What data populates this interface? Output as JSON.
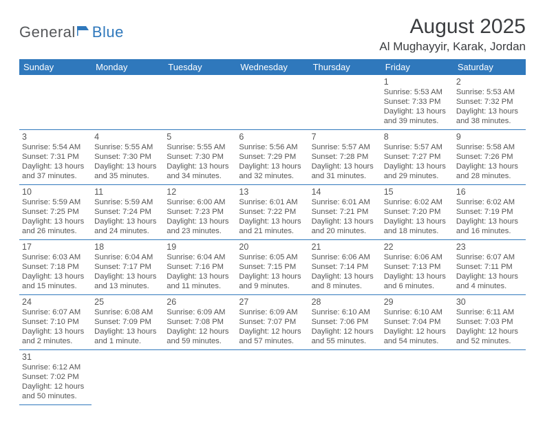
{
  "logo": {
    "part1": "General",
    "part2": "Blue",
    "text_color1": "#55575a",
    "text_color2": "#2f78bc",
    "icon_color": "#2f78bc"
  },
  "title": {
    "month": "August 2025",
    "location": "Al Mughayyir, Karak, Jordan"
  },
  "colors": {
    "header_bg": "#2f78bc",
    "header_fg": "#ffffff",
    "cell_border": "#2f78bc",
    "text": "#555555"
  },
  "weekdays": [
    "Sunday",
    "Monday",
    "Tuesday",
    "Wednesday",
    "Thursday",
    "Friday",
    "Saturday"
  ],
  "weeks": [
    [
      null,
      null,
      null,
      null,
      null,
      {
        "n": "1",
        "sr": "Sunrise: 5:53 AM",
        "ss": "Sunset: 7:33 PM",
        "d1": "Daylight: 13 hours",
        "d2": "and 39 minutes."
      },
      {
        "n": "2",
        "sr": "Sunrise: 5:53 AM",
        "ss": "Sunset: 7:32 PM",
        "d1": "Daylight: 13 hours",
        "d2": "and 38 minutes."
      }
    ],
    [
      {
        "n": "3",
        "sr": "Sunrise: 5:54 AM",
        "ss": "Sunset: 7:31 PM",
        "d1": "Daylight: 13 hours",
        "d2": "and 37 minutes."
      },
      {
        "n": "4",
        "sr": "Sunrise: 5:55 AM",
        "ss": "Sunset: 7:30 PM",
        "d1": "Daylight: 13 hours",
        "d2": "and 35 minutes."
      },
      {
        "n": "5",
        "sr": "Sunrise: 5:55 AM",
        "ss": "Sunset: 7:30 PM",
        "d1": "Daylight: 13 hours",
        "d2": "and 34 minutes."
      },
      {
        "n": "6",
        "sr": "Sunrise: 5:56 AM",
        "ss": "Sunset: 7:29 PM",
        "d1": "Daylight: 13 hours",
        "d2": "and 32 minutes."
      },
      {
        "n": "7",
        "sr": "Sunrise: 5:57 AM",
        "ss": "Sunset: 7:28 PM",
        "d1": "Daylight: 13 hours",
        "d2": "and 31 minutes."
      },
      {
        "n": "8",
        "sr": "Sunrise: 5:57 AM",
        "ss": "Sunset: 7:27 PM",
        "d1": "Daylight: 13 hours",
        "d2": "and 29 minutes."
      },
      {
        "n": "9",
        "sr": "Sunrise: 5:58 AM",
        "ss": "Sunset: 7:26 PM",
        "d1": "Daylight: 13 hours",
        "d2": "and 28 minutes."
      }
    ],
    [
      {
        "n": "10",
        "sr": "Sunrise: 5:59 AM",
        "ss": "Sunset: 7:25 PM",
        "d1": "Daylight: 13 hours",
        "d2": "and 26 minutes."
      },
      {
        "n": "11",
        "sr": "Sunrise: 5:59 AM",
        "ss": "Sunset: 7:24 PM",
        "d1": "Daylight: 13 hours",
        "d2": "and 24 minutes."
      },
      {
        "n": "12",
        "sr": "Sunrise: 6:00 AM",
        "ss": "Sunset: 7:23 PM",
        "d1": "Daylight: 13 hours",
        "d2": "and 23 minutes."
      },
      {
        "n": "13",
        "sr": "Sunrise: 6:01 AM",
        "ss": "Sunset: 7:22 PM",
        "d1": "Daylight: 13 hours",
        "d2": "and 21 minutes."
      },
      {
        "n": "14",
        "sr": "Sunrise: 6:01 AM",
        "ss": "Sunset: 7:21 PM",
        "d1": "Daylight: 13 hours",
        "d2": "and 20 minutes."
      },
      {
        "n": "15",
        "sr": "Sunrise: 6:02 AM",
        "ss": "Sunset: 7:20 PM",
        "d1": "Daylight: 13 hours",
        "d2": "and 18 minutes."
      },
      {
        "n": "16",
        "sr": "Sunrise: 6:02 AM",
        "ss": "Sunset: 7:19 PM",
        "d1": "Daylight: 13 hours",
        "d2": "and 16 minutes."
      }
    ],
    [
      {
        "n": "17",
        "sr": "Sunrise: 6:03 AM",
        "ss": "Sunset: 7:18 PM",
        "d1": "Daylight: 13 hours",
        "d2": "and 15 minutes."
      },
      {
        "n": "18",
        "sr": "Sunrise: 6:04 AM",
        "ss": "Sunset: 7:17 PM",
        "d1": "Daylight: 13 hours",
        "d2": "and 13 minutes."
      },
      {
        "n": "19",
        "sr": "Sunrise: 6:04 AM",
        "ss": "Sunset: 7:16 PM",
        "d1": "Daylight: 13 hours",
        "d2": "and 11 minutes."
      },
      {
        "n": "20",
        "sr": "Sunrise: 6:05 AM",
        "ss": "Sunset: 7:15 PM",
        "d1": "Daylight: 13 hours",
        "d2": "and 9 minutes."
      },
      {
        "n": "21",
        "sr": "Sunrise: 6:06 AM",
        "ss": "Sunset: 7:14 PM",
        "d1": "Daylight: 13 hours",
        "d2": "and 8 minutes."
      },
      {
        "n": "22",
        "sr": "Sunrise: 6:06 AM",
        "ss": "Sunset: 7:13 PM",
        "d1": "Daylight: 13 hours",
        "d2": "and 6 minutes."
      },
      {
        "n": "23",
        "sr": "Sunrise: 6:07 AM",
        "ss": "Sunset: 7:11 PM",
        "d1": "Daylight: 13 hours",
        "d2": "and 4 minutes."
      }
    ],
    [
      {
        "n": "24",
        "sr": "Sunrise: 6:07 AM",
        "ss": "Sunset: 7:10 PM",
        "d1": "Daylight: 13 hours",
        "d2": "and 2 minutes."
      },
      {
        "n": "25",
        "sr": "Sunrise: 6:08 AM",
        "ss": "Sunset: 7:09 PM",
        "d1": "Daylight: 13 hours",
        "d2": "and 1 minute."
      },
      {
        "n": "26",
        "sr": "Sunrise: 6:09 AM",
        "ss": "Sunset: 7:08 PM",
        "d1": "Daylight: 12 hours",
        "d2": "and 59 minutes."
      },
      {
        "n": "27",
        "sr": "Sunrise: 6:09 AM",
        "ss": "Sunset: 7:07 PM",
        "d1": "Daylight: 12 hours",
        "d2": "and 57 minutes."
      },
      {
        "n": "28",
        "sr": "Sunrise: 6:10 AM",
        "ss": "Sunset: 7:06 PM",
        "d1": "Daylight: 12 hours",
        "d2": "and 55 minutes."
      },
      {
        "n": "29",
        "sr": "Sunrise: 6:10 AM",
        "ss": "Sunset: 7:04 PM",
        "d1": "Daylight: 12 hours",
        "d2": "and 54 minutes."
      },
      {
        "n": "30",
        "sr": "Sunrise: 6:11 AM",
        "ss": "Sunset: 7:03 PM",
        "d1": "Daylight: 12 hours",
        "d2": "and 52 minutes."
      }
    ],
    [
      {
        "n": "31",
        "sr": "Sunrise: 6:12 AM",
        "ss": "Sunset: 7:02 PM",
        "d1": "Daylight: 12 hours",
        "d2": "and 50 minutes."
      },
      null,
      null,
      null,
      null,
      null,
      null
    ]
  ]
}
